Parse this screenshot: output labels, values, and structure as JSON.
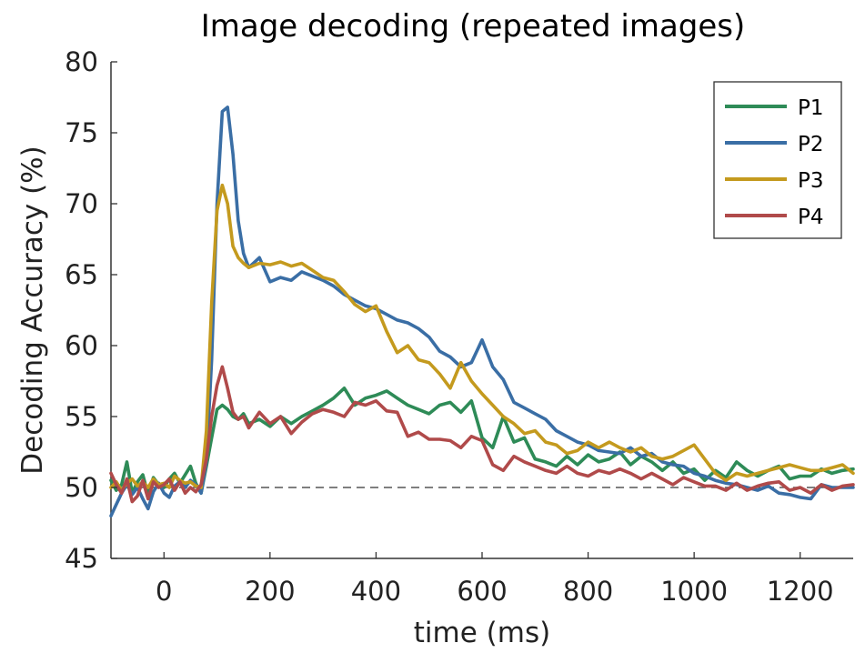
{
  "chart_data": {
    "type": "line",
    "title": "Image decoding (repeated images)",
    "xlabel": "time (ms)",
    "ylabel": "Decoding Accuracy (%)",
    "xlim": [
      -100,
      1300
    ],
    "ylim": [
      45,
      80
    ],
    "xticks": [
      0,
      200,
      400,
      600,
      800,
      1000,
      1200
    ],
    "yticks": [
      45,
      50,
      55,
      60,
      65,
      70,
      75,
      80
    ],
    "chance_level": 50,
    "legend_position": "top-right",
    "grid": false,
    "series": [
      {
        "name": "P1",
        "color": "#2e8b57",
        "x": [
          -100,
          -90,
          -80,
          -70,
          -60,
          -50,
          -40,
          -30,
          -20,
          -10,
          0,
          10,
          20,
          30,
          40,
          50,
          60,
          70,
          80,
          90,
          100,
          110,
          120,
          130,
          140,
          150,
          160,
          180,
          200,
          220,
          240,
          260,
          280,
          300,
          320,
          340,
          360,
          380,
          400,
          420,
          440,
          460,
          480,
          500,
          520,
          540,
          560,
          580,
          600,
          620,
          640,
          660,
          680,
          700,
          720,
          740,
          760,
          780,
          800,
          820,
          840,
          860,
          880,
          900,
          920,
          940,
          960,
          980,
          1000,
          1020,
          1040,
          1060,
          1080,
          1100,
          1120,
          1140,
          1160,
          1180,
          1200,
          1220,
          1240,
          1260,
          1280,
          1300
        ],
        "y": [
          50.5,
          49.8,
          50.2,
          51.8,
          49.6,
          50.4,
          50.9,
          49.5,
          50.7,
          50.2,
          50.0,
          50.6,
          51.0,
          50.3,
          50.9,
          51.5,
          50.3,
          49.6,
          51.5,
          53.5,
          55.5,
          55.8,
          55.5,
          55.0,
          54.8,
          55.2,
          54.5,
          54.8,
          54.3,
          55.0,
          54.5,
          55.0,
          55.4,
          55.8,
          56.3,
          57.0,
          55.8,
          56.3,
          56.5,
          56.8,
          56.3,
          55.8,
          55.5,
          55.2,
          55.8,
          56.0,
          55.3,
          56.1,
          53.5,
          52.8,
          55.0,
          53.2,
          53.5,
          52.0,
          51.8,
          51.5,
          52.2,
          51.6,
          52.3,
          51.8,
          52.0,
          52.5,
          51.6,
          52.2,
          51.8,
          51.2,
          51.8,
          51.0,
          51.3,
          50.5,
          51.2,
          50.7,
          51.8,
          51.2,
          50.8,
          51.2,
          51.5,
          50.6,
          50.8,
          50.8,
          51.3,
          51.0,
          51.2,
          51.3
        ]
      },
      {
        "name": "P2",
        "color": "#3a6ea5",
        "x": [
          -100,
          -90,
          -80,
          -70,
          -60,
          -50,
          -40,
          -30,
          -20,
          -10,
          0,
          10,
          20,
          30,
          40,
          50,
          60,
          70,
          80,
          90,
          100,
          110,
          120,
          130,
          140,
          150,
          160,
          180,
          200,
          220,
          240,
          260,
          280,
          300,
          320,
          340,
          360,
          380,
          400,
          420,
          440,
          460,
          480,
          500,
          520,
          540,
          560,
          580,
          600,
          620,
          640,
          660,
          680,
          700,
          720,
          740,
          760,
          780,
          800,
          820,
          840,
          860,
          880,
          900,
          920,
          940,
          960,
          980,
          1000,
          1020,
          1040,
          1060,
          1080,
          1100,
          1120,
          1140,
          1160,
          1180,
          1200,
          1220,
          1240,
          1260,
          1280,
          1300
        ],
        "y": [
          48.0,
          48.8,
          49.6,
          50.2,
          49.5,
          50.0,
          49.2,
          48.5,
          49.7,
          50.3,
          49.6,
          49.3,
          50.1,
          50.4,
          50.0,
          50.5,
          50.2,
          49.6,
          51.8,
          59.0,
          70.0,
          76.5,
          76.8,
          73.5,
          68.8,
          66.5,
          65.5,
          66.2,
          64.5,
          64.8,
          64.6,
          65.2,
          64.9,
          64.6,
          64.2,
          63.6,
          63.2,
          62.8,
          62.6,
          62.2,
          61.8,
          61.6,
          61.2,
          60.6,
          59.6,
          59.2,
          58.5,
          58.8,
          60.4,
          58.5,
          57.6,
          56.0,
          55.6,
          55.2,
          54.8,
          54.0,
          53.6,
          53.2,
          53.0,
          52.6,
          52.5,
          52.4,
          52.8,
          52.2,
          52.4,
          51.8,
          51.6,
          51.5,
          51.0,
          50.8,
          50.5,
          50.3,
          50.2,
          50.0,
          49.8,
          50.1,
          49.6,
          49.5,
          49.3,
          49.2,
          50.2,
          50.0,
          50.0,
          50.0
        ]
      },
      {
        "name": "P3",
        "color": "#c49a1e",
        "x": [
          -100,
          -90,
          -80,
          -70,
          -60,
          -50,
          -40,
          -30,
          -20,
          -10,
          0,
          10,
          20,
          30,
          40,
          50,
          60,
          70,
          80,
          90,
          100,
          110,
          120,
          130,
          140,
          150,
          160,
          180,
          200,
          220,
          240,
          260,
          280,
          300,
          320,
          340,
          360,
          380,
          400,
          420,
          440,
          460,
          480,
          500,
          520,
          540,
          560,
          580,
          600,
          620,
          640,
          660,
          680,
          700,
          720,
          740,
          760,
          780,
          800,
          820,
          840,
          860,
          880,
          900,
          920,
          940,
          960,
          980,
          1000,
          1020,
          1040,
          1060,
          1080,
          1100,
          1120,
          1140,
          1160,
          1180,
          1200,
          1220,
          1240,
          1260,
          1280,
          1300
        ],
        "y": [
          50.0,
          50.4,
          49.8,
          50.3,
          50.6,
          50.1,
          50.4,
          50.0,
          50.6,
          50.2,
          50.3,
          50.0,
          50.8,
          50.5,
          50.3,
          50.4,
          50.1,
          50.0,
          54.0,
          63.0,
          69.5,
          71.3,
          70.0,
          67.0,
          66.2,
          65.8,
          65.5,
          65.8,
          65.7,
          65.9,
          65.6,
          65.8,
          65.3,
          64.8,
          64.6,
          63.8,
          62.9,
          62.4,
          62.8,
          61.0,
          59.5,
          60.0,
          59.0,
          58.8,
          58.0,
          57.0,
          58.8,
          57.5,
          56.6,
          55.8,
          55.0,
          54.5,
          53.8,
          54.0,
          53.2,
          53.0,
          52.4,
          52.6,
          53.2,
          52.8,
          53.2,
          52.8,
          52.5,
          52.8,
          52.2,
          52.0,
          52.2,
          52.6,
          53.0,
          52.0,
          51.0,
          50.5,
          51.0,
          50.8,
          51.0,
          51.2,
          51.4,
          51.6,
          51.4,
          51.2,
          51.2,
          51.4,
          51.6,
          51.0
        ]
      },
      {
        "name": "P4",
        "color": "#b04a4a",
        "x": [
          -100,
          -90,
          -80,
          -70,
          -60,
          -50,
          -40,
          -30,
          -20,
          -10,
          0,
          10,
          20,
          30,
          40,
          50,
          60,
          70,
          80,
          90,
          100,
          110,
          120,
          130,
          140,
          150,
          160,
          180,
          200,
          220,
          240,
          260,
          280,
          300,
          320,
          340,
          360,
          380,
          400,
          420,
          440,
          460,
          480,
          500,
          520,
          540,
          560,
          580,
          600,
          620,
          640,
          660,
          680,
          700,
          720,
          740,
          760,
          780,
          800,
          820,
          840,
          860,
          880,
          900,
          920,
          940,
          960,
          980,
          1000,
          1020,
          1040,
          1060,
          1080,
          1100,
          1120,
          1140,
          1160,
          1180,
          1200,
          1220,
          1240,
          1260,
          1280,
          1300
        ],
        "y": [
          51.0,
          50.2,
          49.6,
          50.6,
          49.0,
          49.4,
          50.5,
          49.2,
          50.4,
          50.0,
          50.2,
          50.6,
          49.8,
          50.4,
          49.6,
          50.0,
          49.7,
          50.2,
          52.0,
          55.0,
          57.2,
          58.5,
          57.0,
          55.3,
          54.8,
          55.0,
          54.2,
          55.3,
          54.5,
          55.0,
          53.8,
          54.6,
          55.2,
          55.5,
          55.3,
          55.0,
          56.0,
          55.8,
          56.1,
          55.4,
          55.3,
          53.6,
          53.9,
          53.4,
          53.4,
          53.3,
          52.8,
          53.6,
          53.3,
          51.6,
          51.2,
          52.2,
          51.8,
          51.5,
          51.2,
          51.0,
          51.5,
          51.0,
          50.8,
          51.2,
          51.0,
          51.3,
          51.0,
          50.6,
          51.0,
          50.6,
          50.2,
          50.7,
          50.4,
          50.1,
          50.1,
          49.8,
          50.3,
          49.8,
          50.1,
          50.3,
          50.4,
          49.8,
          50.0,
          49.6,
          50.2,
          49.8,
          50.1,
          50.2
        ]
      }
    ]
  }
}
